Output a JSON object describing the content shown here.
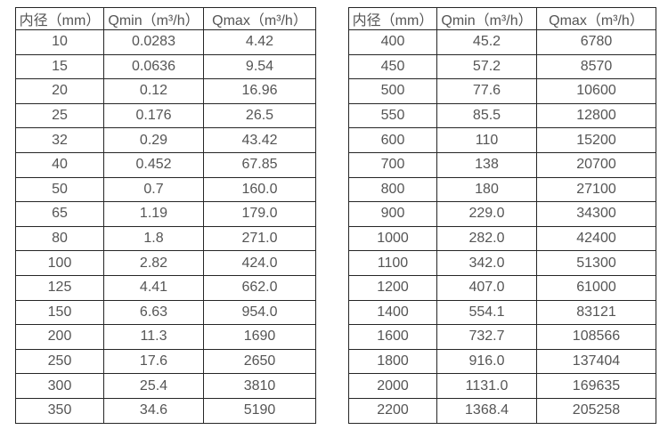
{
  "styles": {
    "border_color": "#262626",
    "text_color": "#555555",
    "background": "#ffffff"
  },
  "chart_data": [
    {
      "type": "table",
      "name": "flow-range-table-small-diameters",
      "columns": [
        "内径（mm）",
        "Qmin（m³/h）",
        "Qmax（m³/h）"
      ],
      "rows": [
        [
          "10",
          "0.0283",
          "4.42"
        ],
        [
          "15",
          "0.0636",
          "9.54"
        ],
        [
          "20",
          "0.12",
          "16.96"
        ],
        [
          "25",
          "0.176",
          "26.5"
        ],
        [
          "32",
          "0.29",
          "43.42"
        ],
        [
          "40",
          "0.452",
          "67.85"
        ],
        [
          "50",
          "0.7",
          "160.0"
        ],
        [
          "65",
          "1.19",
          "179.0"
        ],
        [
          "80",
          "1.8",
          "271.0"
        ],
        [
          "100",
          "2.82",
          "424.0"
        ],
        [
          "125",
          "4.41",
          "662.0"
        ],
        [
          "150",
          "6.63",
          "954.0"
        ],
        [
          "200",
          "11.3",
          "1690"
        ],
        [
          "250",
          "17.6",
          "2650"
        ],
        [
          "300",
          "25.4",
          "3810"
        ],
        [
          "350",
          "34.6",
          "5190"
        ]
      ]
    },
    {
      "type": "table",
      "name": "flow-range-table-large-diameters",
      "columns": [
        "内径（mm）",
        "Qmin（m³/h）",
        "Qmax（m³/h）"
      ],
      "rows": [
        [
          "400",
          "45.2",
          "6780"
        ],
        [
          "450",
          "57.2",
          "8570"
        ],
        [
          "500",
          "77.6",
          "10600"
        ],
        [
          "550",
          "85.5",
          "12800"
        ],
        [
          "600",
          "110",
          "15200"
        ],
        [
          "700",
          "138",
          "20700"
        ],
        [
          "800",
          "180",
          "27100"
        ],
        [
          "900",
          "229.0",
          "34300"
        ],
        [
          "1000",
          "282.0",
          "42400"
        ],
        [
          "1100",
          "342.0",
          "51300"
        ],
        [
          "1200",
          "407.0",
          "61000"
        ],
        [
          "1400",
          "554.1",
          "83121"
        ],
        [
          "1600",
          "732.7",
          "108566"
        ],
        [
          "1800",
          "916.0",
          "137404"
        ],
        [
          "2000",
          "1131.0",
          "169635"
        ],
        [
          "2200",
          "1368.4",
          "205258"
        ]
      ]
    }
  ]
}
